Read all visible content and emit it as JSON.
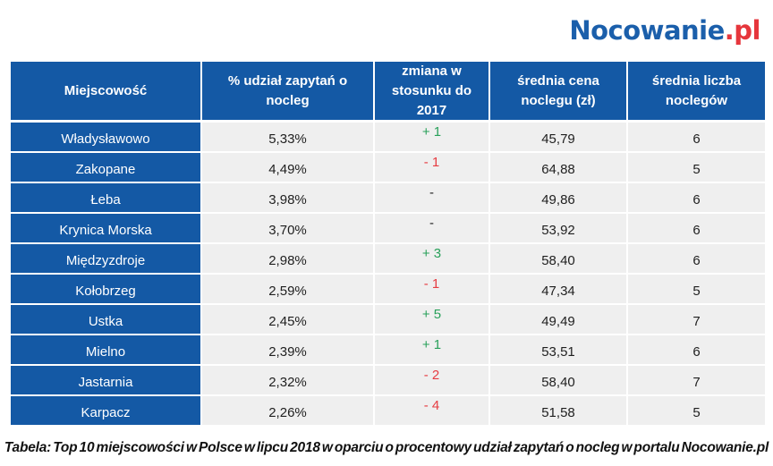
{
  "logo": {
    "name": "Nocowanie",
    "tld": ".pl"
  },
  "table": {
    "headers": {
      "town": "Miejscowość",
      "share": "% udział zapytań o nocleg",
      "change": "zmiana w stosunku do 2017",
      "price": "średnia cena noclegu (zł)",
      "nights": "średnia liczba noclegów"
    },
    "rows": [
      {
        "town": "Władysławowo",
        "share": "5,33%",
        "change": "+ 1",
        "change_dir": "up",
        "price": "45,79",
        "nights": "6"
      },
      {
        "town": "Zakopane",
        "share": "4,49%",
        "change": "- 1",
        "change_dir": "down",
        "price": "64,88",
        "nights": "5"
      },
      {
        "town": "Łeba",
        "share": "3,98%",
        "change": "-",
        "change_dir": "none",
        "price": "49,86",
        "nights": "6"
      },
      {
        "town": "Krynica Morska",
        "share": "3,70%",
        "change": "-",
        "change_dir": "none",
        "price": "53,92",
        "nights": "6"
      },
      {
        "town": "Międzyzdroje",
        "share": "2,98%",
        "change": "+ 3",
        "change_dir": "up",
        "price": "58,40",
        "nights": "6"
      },
      {
        "town": "Kołobrzeg",
        "share": "2,59%",
        "change": "- 1",
        "change_dir": "down",
        "price": "47,34",
        "nights": "5"
      },
      {
        "town": "Ustka",
        "share": "2,45%",
        "change": "+ 5",
        "change_dir": "up",
        "price": "49,49",
        "nights": "7"
      },
      {
        "town": "Mielno",
        "share": "2,39%",
        "change": "+ 1",
        "change_dir": "up",
        "price": "53,51",
        "nights": "6"
      },
      {
        "town": "Jastarnia",
        "share": "2,32%",
        "change": "- 2",
        "change_dir": "down",
        "price": "58,40",
        "nights": "7"
      },
      {
        "town": "Karpacz",
        "share": "2,26%",
        "change": "- 4",
        "change_dir": "down",
        "price": "51,58",
        "nights": "5"
      }
    ]
  },
  "caption": "Tabela: Top 10 miejscowości w Polsce w lipcu 2018 w oparciu o procentowy udział zapytań o nocleg w portalu Nocowanie.pl",
  "colors": {
    "brand_blue": "#1459a5",
    "logo_blue": "#1b5fab",
    "logo_red": "#e6363c",
    "cell_gray": "#efefef",
    "positive_green": "#28a05a",
    "negative_red": "#e63c42",
    "text_dark": "#1f1f1f"
  }
}
